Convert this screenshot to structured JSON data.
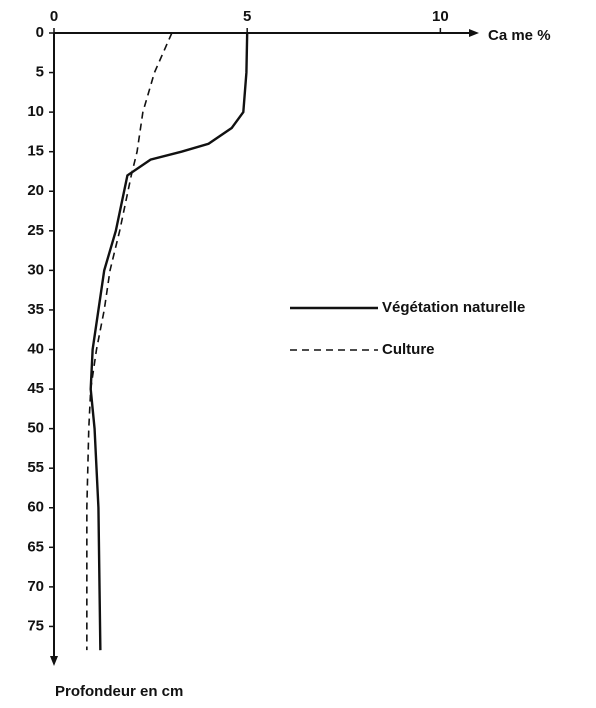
{
  "chart_data": {
    "type": "line",
    "x_label": "Ca me %",
    "y_label": "Profondeur en  cm",
    "xlim": [
      0,
      11
    ],
    "xticks": [
      0,
      5,
      10
    ],
    "ylim": [
      0,
      80
    ],
    "yticks": [
      0,
      5,
      10,
      15,
      20,
      25,
      30,
      35,
      40,
      45,
      50,
      55,
      60,
      65,
      70,
      75
    ],
    "y_inverted": true,
    "grid": false,
    "legend": "right",
    "series": [
      {
        "name": "Végétation  naturelle",
        "color": "#111",
        "dash": false,
        "x": [
          5.0,
          4.98,
          4.9,
          4.6,
          4.0,
          3.3,
          2.5,
          1.9,
          1.6,
          1.3,
          1.15,
          1.0,
          0.95,
          1.05,
          1.1,
          1.15,
          1.2
        ],
        "y": [
          0,
          5,
          10,
          12,
          14,
          15,
          16,
          18,
          25,
          30,
          35,
          40,
          45,
          50,
          55,
          60,
          78
        ]
      },
      {
        "name": "Culture",
        "color": "#111",
        "dash": true,
        "x": [
          3.05,
          2.6,
          2.3,
          2.15,
          2.0,
          1.7,
          1.45,
          1.3,
          1.1,
          0.95,
          0.9,
          0.85,
          0.85
        ],
        "y": [
          0,
          5,
          10,
          15,
          18,
          25,
          30,
          35,
          40,
          45,
          50,
          60,
          78
        ]
      }
    ]
  }
}
